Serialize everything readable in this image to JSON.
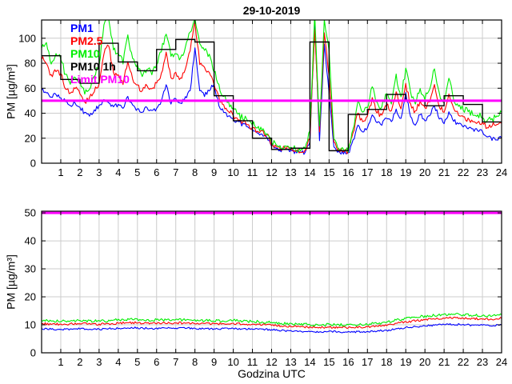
{
  "figure": {
    "title": "29-10-2019",
    "xlabel": "Godzina UTC",
    "ylabel": "PM [µg/m³]",
    "background": "#ffffff",
    "grid_color": "#cccccc",
    "frame_color": "#000000",
    "tick_label_color": "#000000"
  },
  "legend": [
    {
      "label": "PM1",
      "color": "#0000ff"
    },
    {
      "label": "PM2.5",
      "color": "#ff0000"
    },
    {
      "label": "PM10",
      "color": "#00ee00"
    },
    {
      "label": "PM10 1h",
      "color": "#000000"
    },
    {
      "label": "Limit PM10",
      "color": "#ff00ff"
    }
  ],
  "chart_data": [
    {
      "type": "line",
      "title": "29-10-2019",
      "ylabel": "PM [µg/m³]",
      "xlabel": "",
      "xlim": [
        0,
        24
      ],
      "ylim": [
        0,
        114.6
      ],
      "xticks": [
        1,
        2,
        3,
        4,
        5,
        6,
        7,
        8,
        9,
        10,
        11,
        12,
        13,
        14,
        15,
        16,
        17,
        18,
        19,
        20,
        21,
        22,
        23,
        24
      ],
      "yticks": [
        0,
        20,
        40,
        60,
        80,
        100
      ],
      "grid": true,
      "series": [
        {
          "name": "PM1",
          "color": "#0000ff",
          "x_start": 0,
          "x_step": 0.25,
          "noise": 1.8,
          "width": 1.1,
          "values": [
            59,
            56,
            53,
            55,
            53,
            49,
            46,
            48,
            45,
            40,
            37,
            42,
            46,
            51,
            49,
            45,
            47,
            44,
            53,
            46,
            43,
            40,
            45,
            42,
            44,
            50,
            63,
            48,
            51,
            48,
            53,
            58,
            92,
            58,
            54,
            58,
            64,
            46,
            41,
            38,
            35,
            33,
            31,
            29,
            26,
            24,
            23,
            21,
            14,
            12,
            10,
            11,
            10,
            9,
            8,
            9,
            16,
            112,
            18,
            96,
            55,
            13,
            9,
            8,
            8,
            18,
            30,
            25,
            29,
            39,
            33,
            31,
            36,
            33,
            43,
            35,
            56,
            37,
            31,
            39,
            34,
            38,
            46,
            36,
            32,
            41,
            34,
            31,
            29,
            28,
            27,
            26,
            25,
            21,
            19,
            19,
            20
          ]
        },
        {
          "name": "PM2.5",
          "color": "#ff0000",
          "x_start": 0,
          "x_step": 0.25,
          "noise": 2.2,
          "width": 1.1,
          "values": [
            84,
            80,
            70,
            74,
            72,
            60,
            56,
            60,
            56,
            48,
            52,
            58,
            64,
            88,
            94,
            72,
            70,
            64,
            82,
            68,
            62,
            57,
            63,
            59,
            64,
            72,
            88,
            68,
            72,
            68,
            76,
            90,
            113,
            80,
            76,
            72,
            62,
            52,
            46,
            42,
            38,
            35,
            33,
            31,
            28,
            26,
            25,
            23,
            15,
            13,
            11,
            12,
            11,
            10,
            9,
            10,
            20,
            108,
            25,
            104,
            70,
            16,
            11,
            9,
            9,
            24,
            40,
            33,
            37,
            52,
            41,
            38,
            47,
            41,
            58,
            44,
            63,
            47,
            41,
            50,
            44,
            49,
            62,
            46,
            41,
            56,
            43,
            39,
            37,
            35,
            34,
            33,
            32,
            29,
            30,
            31,
            32
          ]
        },
        {
          "name": "PM10",
          "color": "#00ee00",
          "x_start": 0,
          "x_step": 0.25,
          "noise": 2.8,
          "width": 1.1,
          "values": [
            93,
            97,
            80,
            88,
            84,
            70,
            64,
            70,
            65,
            56,
            60,
            70,
            78,
            112,
            116,
            90,
            88,
            80,
            102,
            84,
            78,
            70,
            76,
            72,
            80,
            90,
            104,
            85,
            88,
            84,
            92,
            106,
            116,
            95,
            90,
            86,
            74,
            62,
            54,
            49,
            44,
            39,
            36,
            34,
            31,
            29,
            27,
            25,
            17,
            14,
            12,
            13,
            12,
            11,
            10,
            11,
            25,
            118,
            30,
            114,
            90,
            20,
            12,
            10,
            10,
            28,
            48,
            40,
            44,
            62,
            48,
            45,
            56,
            48,
            70,
            52,
            76,
            56,
            48,
            60,
            52,
            58,
            76,
            55,
            48,
            68,
            52,
            46,
            43,
            41,
            39,
            38,
            37,
            34,
            35,
            38,
            41
          ]
        },
        {
          "name": "PM10 1h",
          "color": "#000000",
          "type": "step",
          "x_start": 0,
          "x_step": 1,
          "width": 1.4,
          "values": [
            86,
            67,
            64,
            96,
            81,
            74,
            91,
            99,
            97,
            54,
            34,
            20,
            11,
            12,
            97,
            10,
            39,
            43,
            55,
            50,
            46,
            54,
            47,
            33
          ]
        },
        {
          "name": "Limit PM10",
          "color": "#ff00ff",
          "type": "hline",
          "value": 50,
          "width": 3
        }
      ]
    },
    {
      "type": "line",
      "title": "",
      "ylabel": "PM [µg/m³]",
      "xlabel": "Godzina UTC",
      "xlim": [
        0,
        24
      ],
      "ylim": [
        0,
        50.6
      ],
      "xticks": [
        1,
        2,
        3,
        4,
        5,
        6,
        7,
        8,
        9,
        10,
        11,
        12,
        13,
        14,
        15,
        16,
        17,
        18,
        19,
        20,
        21,
        22,
        23,
        24
      ],
      "yticks": [
        0,
        10,
        20,
        30,
        40,
        50
      ],
      "grid": true,
      "series": [
        {
          "name": "PM1",
          "color": "#0000ff",
          "x_start": 0,
          "x_step": 0.5,
          "noise": 0.35,
          "width": 1.1,
          "values": [
            8.6,
            8.5,
            8.4,
            8.5,
            8.6,
            8.5,
            8.4,
            8.6,
            8.8,
            9.0,
            8.9,
            8.8,
            8.7,
            8.8,
            8.9,
            8.8,
            8.7,
            8.6,
            8.5,
            8.6,
            8.7,
            8.6,
            8.5,
            8.4,
            8.3,
            8.0,
            7.8,
            7.7,
            7.6,
            7.5,
            7.6,
            7.5,
            7.4,
            7.5,
            7.6,
            7.8,
            8.0,
            8.5,
            9.0,
            9.3,
            9.6,
            9.9,
            10.1,
            10.2,
            10.0,
            9.9,
            9.8,
            9.7,
            10.0
          ]
        },
        {
          "name": "PM2.5",
          "color": "#ff0000",
          "x_start": 0,
          "x_step": 0.5,
          "noise": 0.4,
          "width": 1.1,
          "values": [
            10.4,
            10.3,
            10.2,
            10.3,
            10.4,
            10.3,
            10.2,
            10.4,
            10.6,
            10.8,
            10.7,
            10.6,
            10.5,
            10.6,
            10.7,
            10.6,
            10.5,
            10.4,
            10.3,
            10.4,
            10.5,
            10.3,
            10.2,
            10.0,
            9.9,
            9.6,
            9.4,
            9.3,
            9.2,
            9.1,
            9.2,
            9.1,
            9.0,
            9.1,
            9.2,
            9.5,
            9.8,
            10.4,
            11.0,
            11.4,
            11.8,
            12.1,
            12.4,
            12.5,
            12.3,
            12.2,
            12.1,
            12.0,
            12.3
          ]
        },
        {
          "name": "PM10",
          "color": "#00ee00",
          "x_start": 0,
          "x_step": 0.5,
          "noise": 0.5,
          "width": 1.1,
          "values": [
            11.5,
            11.4,
            11.3,
            11.4,
            11.6,
            11.4,
            11.3,
            11.5,
            11.8,
            12.0,
            11.9,
            11.8,
            11.7,
            11.8,
            11.9,
            11.8,
            11.7,
            11.5,
            11.4,
            11.5,
            11.6,
            11.4,
            11.2,
            11.0,
            10.8,
            10.5,
            10.3,
            10.2,
            10.1,
            10.0,
            10.1,
            10.0,
            9.9,
            10.0,
            10.2,
            10.5,
            10.9,
            11.6,
            12.2,
            12.7,
            13.1,
            13.4,
            13.7,
            13.8,
            13.6,
            13.4,
            13.3,
            13.2,
            13.6
          ]
        },
        {
          "name": "Limit PM10",
          "color": "#ff00ff",
          "type": "hline",
          "value": 50,
          "width": 3
        }
      ]
    }
  ]
}
